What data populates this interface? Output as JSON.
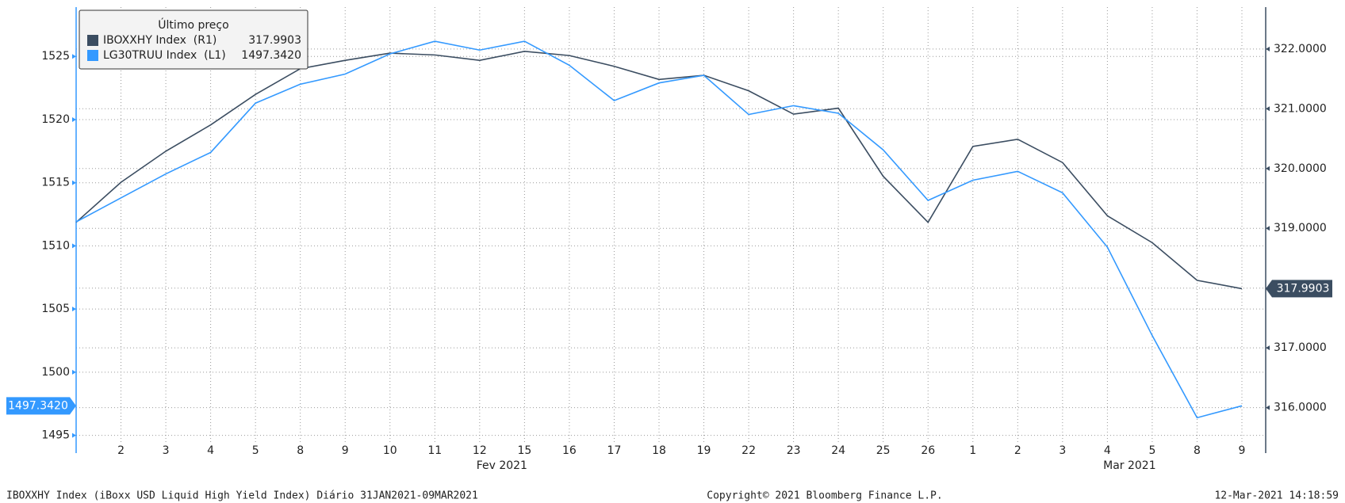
{
  "chart_data": {
    "type": "line",
    "categories": [
      null,
      "2",
      "3",
      "4",
      "5",
      "8",
      "9",
      "10",
      "11",
      "12",
      "15",
      "16",
      "17",
      "18",
      "19",
      "22",
      "23",
      "24",
      "25",
      "26",
      "1",
      "2",
      "3",
      "4",
      "5",
      "8",
      "9"
    ],
    "x_group_labels": [
      {
        "label": "Fev 2021",
        "index": 9
      },
      {
        "label": "Mar 2021",
        "index": 23
      }
    ],
    "legend_title": "Último preço",
    "series": [
      {
        "name": "IBOXXHY Index  (R1)",
        "color": "#3b4d61",
        "axis": "y2",
        "last_label": "317.9903",
        "values": [
          319.1,
          319.77,
          320.29,
          320.73,
          321.24,
          321.67,
          321.81,
          321.93,
          321.9,
          321.81,
          321.96,
          321.89,
          321.71,
          321.49,
          321.56,
          321.3,
          320.91,
          321.01,
          319.87,
          319.1,
          320.37,
          320.49,
          320.1,
          319.21,
          318.76,
          318.13,
          317.9903
        ]
      },
      {
        "name": "LG30TRUU Index  (L1)",
        "color": "#3399ff",
        "axis": "y",
        "last_label": "1497.3420",
        "values": [
          1511.9,
          1513.8,
          1515.7,
          1517.4,
          1521.3,
          1522.8,
          1523.6,
          1525.2,
          1526.2,
          1525.5,
          1526.2,
          1524.3,
          1521.5,
          1522.9,
          1523.5,
          1520.4,
          1521.1,
          1520.5,
          1517.6,
          1513.6,
          1515.2,
          1515.9,
          1514.2,
          1509.9,
          1502.9,
          1496.4,
          1497.342
        ]
      }
    ],
    "ylim": [
      1493.6,
      1528.9
    ],
    "yticks": [
      1495,
      1500,
      1505,
      1510,
      1515,
      1520,
      1525
    ],
    "y2lim": [
      315.24,
      322.7
    ],
    "y2ticks": [
      {
        "value": 316,
        "label": "316.0000"
      },
      {
        "value": 317,
        "label": "317.0000"
      },
      {
        "value": 318,
        "label": "318.0000"
      },
      {
        "value": 319,
        "label": "319.0000"
      },
      {
        "value": 320,
        "label": "320.0000"
      },
      {
        "value": 321,
        "label": "321.0000"
      },
      {
        "value": 322,
        "label": "322.0000"
      }
    ],
    "grid": true,
    "footer": {
      "left": "IBOXXHY Index (iBoxx USD Liquid High Yield Index)  Diário 31JAN2021-09MAR2021",
      "center": "Copyright© 2021 Bloomberg Finance L.P.",
      "right": "12-Mar-2021 14:18:59"
    }
  }
}
